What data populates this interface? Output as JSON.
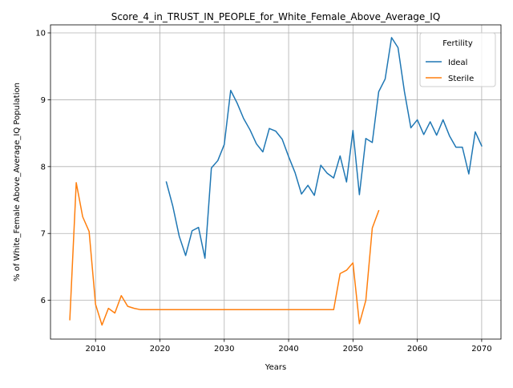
{
  "chart_data": {
    "type": "line",
    "title": "Score_4_in_TRUST_IN_PEOPLE_for_White_Female_Above_Average_IQ",
    "xlabel": "Years",
    "ylabel": "% of White_Female Above_Average_IQ Population",
    "xlim": [
      2003,
      2073
    ],
    "ylim": [
      5.42,
      10.12
    ],
    "x_ticks": [
      2010,
      2020,
      2030,
      2040,
      2050,
      2060,
      2070
    ],
    "y_ticks": [
      6,
      7,
      8,
      9,
      10
    ],
    "grid": true,
    "legend": {
      "title": "Fertility",
      "position": "top-right"
    },
    "series": [
      {
        "name": "Ideal",
        "color": "#1f77b4",
        "x": [
          2021,
          2022,
          2023,
          2024,
          2025,
          2026,
          2027,
          2028,
          2029,
          2030,
          2031,
          2032,
          2033,
          2034,
          2035,
          2036,
          2037,
          2038,
          2039,
          2040,
          2041,
          2042,
          2043,
          2044,
          2045,
          2046,
          2047,
          2048,
          2049,
          2050,
          2051,
          2052,
          2053,
          2054,
          2055,
          2056,
          2057,
          2058,
          2059,
          2060,
          2061,
          2062,
          2063,
          2064,
          2065,
          2066,
          2067,
          2068,
          2069,
          2070
        ],
        "y": [
          7.77,
          7.41,
          6.96,
          6.67,
          7.04,
          7.09,
          6.63,
          7.98,
          8.09,
          8.33,
          9.14,
          8.95,
          8.72,
          8.55,
          8.34,
          8.22,
          8.57,
          8.53,
          8.41,
          8.15,
          7.91,
          7.59,
          7.72,
          7.57,
          8.02,
          7.9,
          7.83,
          8.16,
          7.77,
          8.54,
          7.58,
          8.42,
          8.36,
          9.12,
          9.31,
          9.93,
          9.78,
          9.12,
          8.58,
          8.7,
          8.48,
          8.67,
          8.47,
          8.7,
          8.46,
          8.29,
          8.29,
          7.89,
          8.52,
          8.31
        ]
      },
      {
        "name": "Sterile",
        "color": "#ff7f0e",
        "x": [
          2006,
          2007,
          2008,
          2009,
          2010,
          2011,
          2012,
          2013,
          2014,
          2015,
          2016,
          2017,
          2018,
          2019,
          2020,
          2021,
          2022,
          2023,
          2024,
          2025,
          2026,
          2027,
          2028,
          2029,
          2030,
          2031,
          2032,
          2033,
          2034,
          2035,
          2036,
          2037,
          2038,
          2039,
          2040,
          2041,
          2042,
          2043,
          2044,
          2045,
          2046,
          2047,
          2048,
          2049,
          2050,
          2051,
          2052,
          2053,
          2054
        ],
        "y": [
          5.71,
          7.76,
          7.25,
          7.03,
          5.94,
          5.63,
          5.88,
          5.81,
          6.07,
          5.91,
          5.88,
          5.86,
          5.86,
          5.86,
          5.86,
          5.86,
          5.86,
          5.86,
          5.86,
          5.86,
          5.86,
          5.86,
          5.86,
          5.86,
          5.86,
          5.86,
          5.86,
          5.86,
          5.86,
          5.86,
          5.86,
          5.86,
          5.86,
          5.86,
          5.86,
          5.86,
          5.86,
          5.86,
          5.86,
          5.86,
          5.86,
          5.86,
          6.4,
          6.45,
          6.56,
          5.65,
          6.0,
          7.08,
          7.34
        ]
      }
    ]
  }
}
